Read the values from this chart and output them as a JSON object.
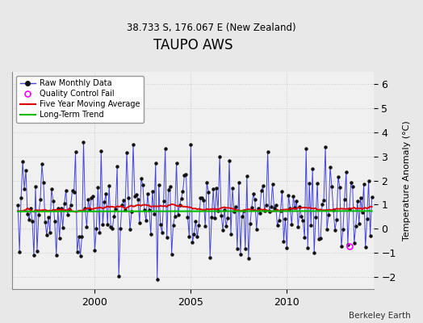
{
  "title": "TAUPO AWS",
  "subtitle": "38.733 S, 176.067 E (New Zealand)",
  "ylabel": "Temperature Anomaly (°C)",
  "credit": "Berkeley Earth",
  "ylim": [
    -2.5,
    6.5
  ],
  "yticks": [
    -2,
    -1,
    0,
    1,
    2,
    3,
    4,
    5,
    6
  ],
  "xlim": [
    1996.0,
    2014.5
  ],
  "xticks": [
    2000,
    2005,
    2010
  ],
  "bg_color": "#e8e8e8",
  "plot_bg": "#f0f0f0",
  "line_color": "#4444dd",
  "marker_color": "#111111",
  "ma_color": "#dd0000",
  "trend_color": "#00bb00",
  "qc_color": "#ff00ff",
  "seed": 17,
  "n_months": 222,
  "year_start": 1996.0,
  "trend_level": 0.72,
  "ma_mean": 0.72,
  "qc_x": 2013.25,
  "qc_y": -0.72
}
